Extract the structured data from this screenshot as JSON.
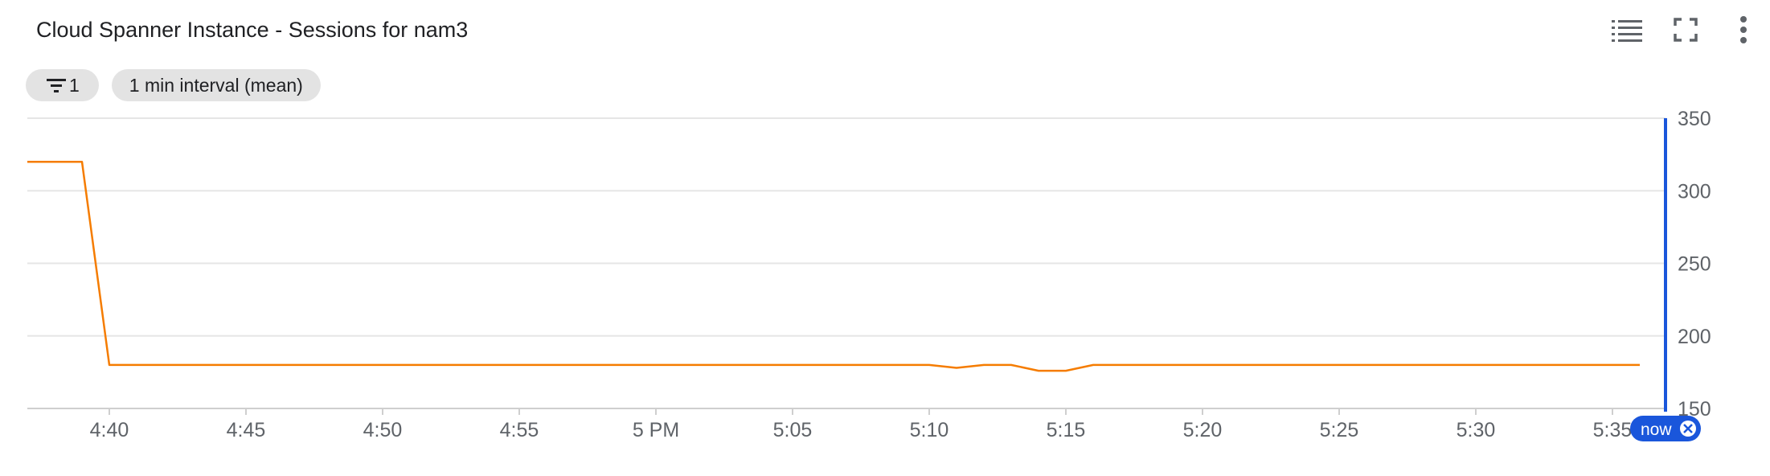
{
  "header": {
    "title": "Cloud Spanner Instance - Sessions for nam3",
    "icons": [
      "legend-list-icon",
      "fullscreen-icon",
      "more-vert-icon"
    ]
  },
  "chips": {
    "filter_count": "1",
    "interval_label": "1 min interval (mean)"
  },
  "chart_data": {
    "type": "line",
    "xlabel": "",
    "ylabel": "",
    "ylim": [
      150,
      350
    ],
    "yticks": [
      150,
      200,
      250,
      300,
      350
    ],
    "x_tick_labels": [
      "4:40",
      "4:45",
      "4:50",
      "4:55",
      "5 PM",
      "5:05",
      "5:10",
      "5:15",
      "5:20",
      "5:25",
      "5:30",
      "5:35"
    ],
    "grid": true,
    "series_color": "#f57c00",
    "series": [
      {
        "x": [
          "4:37",
          "4:39",
          "4:40",
          "5:10",
          "5:11",
          "5:12",
          "5:13",
          "5:14",
          "5:15",
          "5:16",
          "5:36"
        ],
        "values": [
          320,
          320,
          180,
          180,
          178,
          180,
          180,
          176,
          176,
          180,
          180
        ]
      }
    ],
    "now_marker": {
      "label": "now",
      "color": "#1a56db"
    }
  }
}
